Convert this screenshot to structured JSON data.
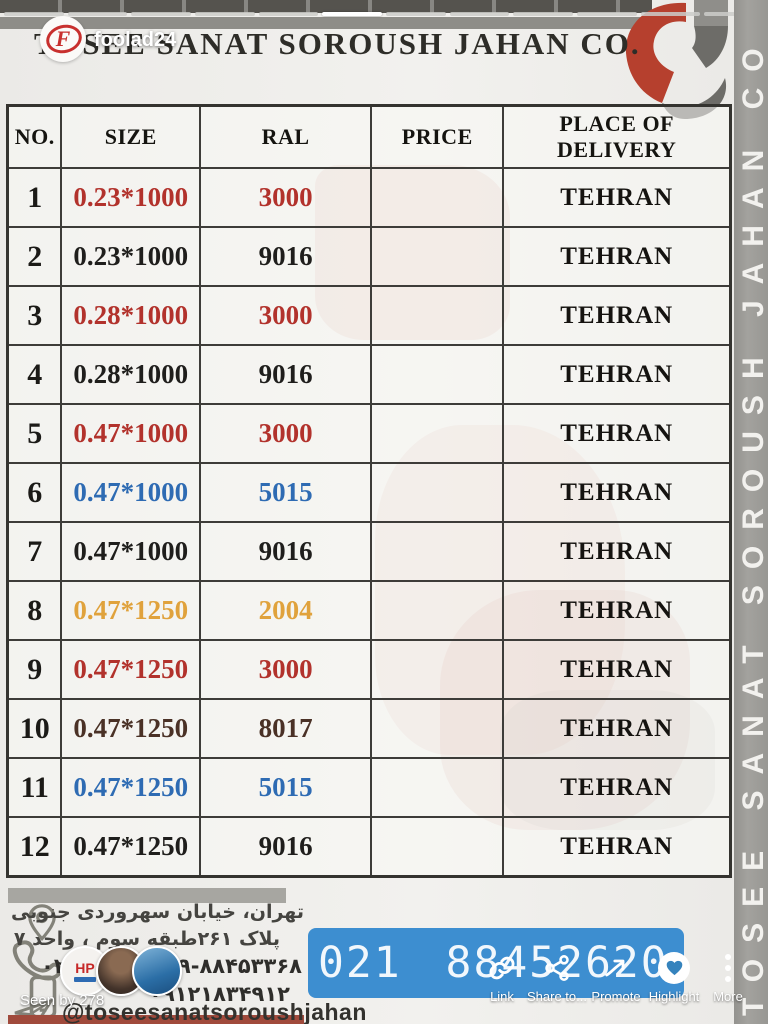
{
  "story": {
    "username": "foolad24",
    "seen_by": "Seen by 278",
    "progress": {
      "segment_count": 12,
      "active_index": 5
    },
    "avatar_hp_label": "HP",
    "actions": [
      {
        "label": "Link",
        "icon": "link-icon"
      },
      {
        "label": "Share to...",
        "icon": "share-nodes-icon"
      },
      {
        "label": "Promote",
        "icon": "promote-arrow-icon"
      },
      {
        "label": "Highlight",
        "icon": "highlight-heart-icon"
      },
      {
        "label": "More",
        "icon": "more-dots-icon"
      }
    ]
  },
  "flyer": {
    "company_title": "TOSEE SANAT SOROUSH JAHAN CO.",
    "side_banner_text": "TOSEE SANAT SOROUSH JAHAN CO",
    "table": {
      "headers": [
        "NO.",
        "SIZE",
        "RAL",
        "PRICE",
        "PLACE OF DELIVERY"
      ],
      "rows": [
        {
          "no": "1",
          "size": "0.23*1000",
          "ral": "3000",
          "price": "",
          "place": "TEHRAN",
          "color": "#b2322c"
        },
        {
          "no": "2",
          "size": "0.23*1000",
          "ral": "9016",
          "price": "",
          "place": "TEHRAN",
          "color": "#1f1e1c"
        },
        {
          "no": "3",
          "size": "0.28*1000",
          "ral": "3000",
          "price": "",
          "place": "TEHRAN",
          "color": "#b2322c"
        },
        {
          "no": "4",
          "size": "0.28*1000",
          "ral": "9016",
          "price": "",
          "place": "TEHRAN",
          "color": "#1f1e1c"
        },
        {
          "no": "5",
          "size": "0.47*1000",
          "ral": "3000",
          "price": "",
          "place": "TEHRAN",
          "color": "#b2322c"
        },
        {
          "no": "6",
          "size": "0.47*1000",
          "ral": "5015",
          "price": "",
          "place": "TEHRAN",
          "color": "#2e6bb3"
        },
        {
          "no": "7",
          "size": "0.47*1000",
          "ral": "9016",
          "price": "",
          "place": "TEHRAN",
          "color": "#1f1e1c"
        },
        {
          "no": "8",
          "size": "0.47*1250",
          "ral": "2004",
          "price": "",
          "place": "TEHRAN",
          "color": "#e0a23c"
        },
        {
          "no": "9",
          "size": "0.47*1250",
          "ral": "3000",
          "price": "",
          "place": "TEHRAN",
          "color": "#b2322c"
        },
        {
          "no": "10",
          "size": "0.47*1250",
          "ral": "8017",
          "price": "",
          "place": "TEHRAN",
          "color": "#4a3126"
        },
        {
          "no": "11",
          "size": "0.47*1250",
          "ral": "5015",
          "price": "",
          "place": "TEHRAN",
          "color": "#2e6bb3"
        },
        {
          "no": "12",
          "size": "0.47*1250",
          "ral": "9016",
          "price": "",
          "place": "TEHRAN",
          "color": "#1f1e1c"
        }
      ]
    },
    "address_line1": "تهران، خیابان سهروردی جنوبی",
    "address_line2": "پلاک ۲۶۱طبقه سوم ، واحد ۷",
    "phones_line": "۰۲۱-۸۸۴۲۰۸۶۹-۸۸۴۵۳۳۶۸",
    "mobile_line": "۰۹۱۲۱۸۳۴۹۱۲",
    "instagram_handle": "@toseesanatsoroushjahan",
    "phone_banner": "021 88452620"
  },
  "colors": {
    "ral_red": "#b2322c",
    "ral_blue": "#2e6bb3",
    "ral_orange": "#e0a23c",
    "ral_brown": "#4a3126",
    "banner_blue": "#3d8ed0",
    "strip_gray": "#9c9b97",
    "logo_red": "#b6402e"
  },
  "icons": {
    "footer": [
      "location-pin",
      "phone-handset",
      "smartphone",
      "paper-plane"
    ],
    "actions": [
      "link",
      "share-nodes",
      "promote-arrow",
      "highlight-heart",
      "more-dots"
    ]
  }
}
